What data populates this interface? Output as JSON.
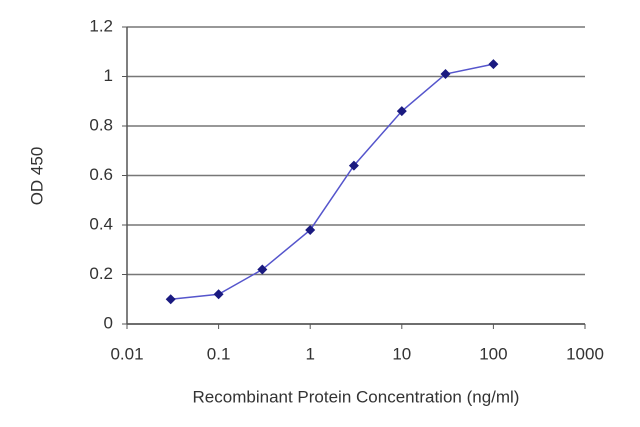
{
  "chart_data": {
    "type": "line",
    "x": [
      0.03,
      0.1,
      0.3,
      1,
      3,
      10,
      30,
      100
    ],
    "series": [
      {
        "color": "#5555cc",
        "values": [
          0.1,
          0.12,
          0.22,
          0.38,
          0.64,
          0.86,
          1.01,
          1.05
        ]
      }
    ],
    "xlabel": "Recombinant Protein Concentration (ng/ml)",
    "ylabel": "OD 450",
    "xscale": "log",
    "xlim": [
      0.01,
      1000
    ],
    "xticks": [
      0.01,
      0.1,
      1,
      10,
      100,
      1000
    ],
    "ylim": [
      0,
      1.2
    ],
    "yticks": [
      0,
      0.2,
      0.4,
      0.6,
      0.8,
      1,
      1.2
    ],
    "grid": true,
    "marker_color": "#1a1a80"
  }
}
